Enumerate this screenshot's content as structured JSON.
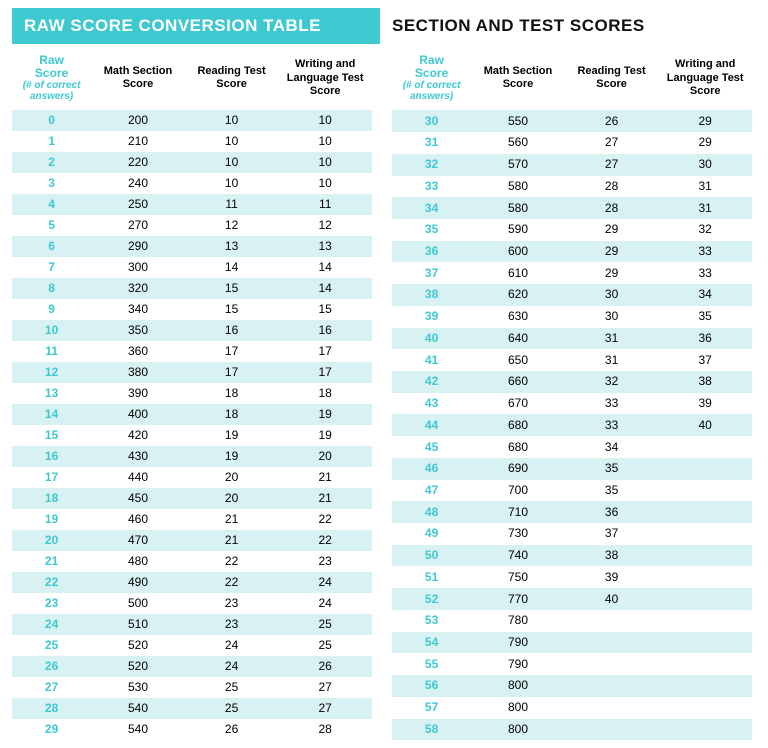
{
  "colors": {
    "accent": "#3ec8d0",
    "stripe": "#d8f2f3",
    "text": "#111111",
    "white": "#ffffff"
  },
  "title_left": "RAW SCORE CONVERSION TABLE",
  "title_right": "SECTION AND TEST SCORES",
  "headers": {
    "raw_line1": "Raw",
    "raw_line2": "Score",
    "raw_line3": "(# of correct answers)",
    "math": "Math Section Score",
    "reading": "Reading Test Score",
    "writing": "Writing and Language Test Score",
    "reading_alt": "Reading Test Score"
  },
  "left_rows": [
    [
      "0",
      "200",
      "10",
      "10"
    ],
    [
      "1",
      "210",
      "10",
      "10"
    ],
    [
      "2",
      "220",
      "10",
      "10"
    ],
    [
      "3",
      "240",
      "10",
      "10"
    ],
    [
      "4",
      "250",
      "11",
      "11"
    ],
    [
      "5",
      "270",
      "12",
      "12"
    ],
    [
      "6",
      "290",
      "13",
      "13"
    ],
    [
      "7",
      "300",
      "14",
      "14"
    ],
    [
      "8",
      "320",
      "15",
      "14"
    ],
    [
      "9",
      "340",
      "15",
      "15"
    ],
    [
      "10",
      "350",
      "16",
      "16"
    ],
    [
      "11",
      "360",
      "17",
      "17"
    ],
    [
      "12",
      "380",
      "17",
      "17"
    ],
    [
      "13",
      "390",
      "18",
      "18"
    ],
    [
      "14",
      "400",
      "18",
      "19"
    ],
    [
      "15",
      "420",
      "19",
      "19"
    ],
    [
      "16",
      "430",
      "19",
      "20"
    ],
    [
      "17",
      "440",
      "20",
      "21"
    ],
    [
      "18",
      "450",
      "20",
      "21"
    ],
    [
      "19",
      "460",
      "21",
      "22"
    ],
    [
      "20",
      "470",
      "21",
      "22"
    ],
    [
      "21",
      "480",
      "22",
      "23"
    ],
    [
      "22",
      "490",
      "22",
      "24"
    ],
    [
      "23",
      "500",
      "23",
      "24"
    ],
    [
      "24",
      "510",
      "23",
      "25"
    ],
    [
      "25",
      "520",
      "24",
      "25"
    ],
    [
      "26",
      "520",
      "24",
      "26"
    ],
    [
      "27",
      "530",
      "25",
      "27"
    ],
    [
      "28",
      "540",
      "25",
      "27"
    ],
    [
      "29",
      "540",
      "26",
      "28"
    ]
  ],
  "right_rows": [
    [
      "30",
      "550",
      "26",
      "29"
    ],
    [
      "31",
      "560",
      "27",
      "29"
    ],
    [
      "32",
      "570",
      "27",
      "30"
    ],
    [
      "33",
      "580",
      "28",
      "31"
    ],
    [
      "34",
      "580",
      "28",
      "31"
    ],
    [
      "35",
      "590",
      "29",
      "32"
    ],
    [
      "36",
      "600",
      "29",
      "33"
    ],
    [
      "37",
      "610",
      "29",
      "33"
    ],
    [
      "38",
      "620",
      "30",
      "34"
    ],
    [
      "39",
      "630",
      "30",
      "35"
    ],
    [
      "40",
      "640",
      "31",
      "36"
    ],
    [
      "41",
      "650",
      "31",
      "37"
    ],
    [
      "42",
      "660",
      "32",
      "38"
    ],
    [
      "43",
      "670",
      "33",
      "39"
    ],
    [
      "44",
      "680",
      "33",
      "40"
    ],
    [
      "45",
      "680",
      "34",
      ""
    ],
    [
      "46",
      "690",
      "35",
      ""
    ],
    [
      "47",
      "700",
      "35",
      ""
    ],
    [
      "48",
      "710",
      "36",
      ""
    ],
    [
      "49",
      "730",
      "37",
      ""
    ],
    [
      "50",
      "740",
      "38",
      ""
    ],
    [
      "51",
      "750",
      "39",
      ""
    ],
    [
      "52",
      "770",
      "40",
      ""
    ],
    [
      "53",
      "780",
      "",
      ""
    ],
    [
      "54",
      "790",
      "",
      ""
    ],
    [
      "55",
      "790",
      "",
      ""
    ],
    [
      "56",
      "800",
      "",
      ""
    ],
    [
      "57",
      "800",
      "",
      ""
    ],
    [
      "58",
      "800",
      "",
      ""
    ]
  ]
}
